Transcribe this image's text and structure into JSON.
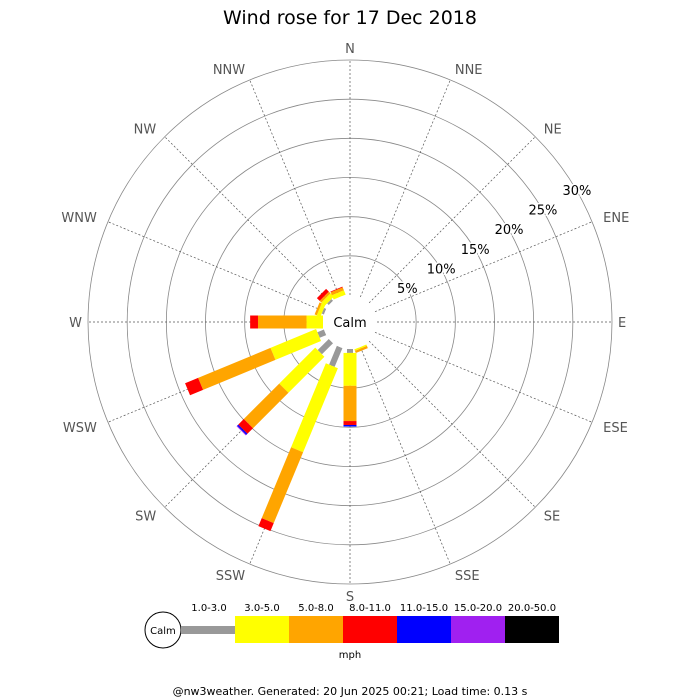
{
  "chart_data": {
    "type": "wind-rose",
    "title": "Wind rose for 17 Dec 2018",
    "center_label": "Calm",
    "directions": [
      "N",
      "NNE",
      "NE",
      "ENE",
      "E",
      "ESE",
      "SE",
      "SSE",
      "S",
      "SSW",
      "SW",
      "WSW",
      "W",
      "WNW",
      "NW",
      "NNW"
    ],
    "radial_ticks": [
      "5%",
      "10%",
      "15%",
      "20%",
      "25%",
      "30%"
    ],
    "radial_tick_values": [
      5,
      10,
      15,
      20,
      25,
      30
    ],
    "rmax": 30,
    "grid": true,
    "unit": "mph",
    "bins": [
      {
        "label": "1.0-3.0",
        "color": "#999999"
      },
      {
        "label": "3.0-5.0",
        "color": "#ffff00"
      },
      {
        "label": "5.0-8.0",
        "color": "#ffa500"
      },
      {
        "label": "8.0-11.0",
        "color": "#ff0000"
      },
      {
        "label": "11.0-15.0",
        "color": "#0000ff"
      },
      {
        "label": "15.0-20.0",
        "color": "#a020f0"
      },
      {
        "label": "20.0-50.0",
        "color": "#000000"
      }
    ],
    "series": [
      {
        "direction": "N",
        "values": [
          0,
          0,
          0,
          0,
          0,
          0,
          0
        ]
      },
      {
        "direction": "NNE",
        "values": [
          0,
          0,
          0,
          0,
          0,
          0,
          0
        ]
      },
      {
        "direction": "NE",
        "values": [
          0,
          0,
          0,
          0,
          0,
          0,
          0
        ]
      },
      {
        "direction": "ENE",
        "values": [
          0,
          0,
          0,
          0,
          0,
          0,
          0
        ]
      },
      {
        "direction": "E",
        "values": [
          0,
          0,
          0,
          0,
          0,
          0,
          0
        ]
      },
      {
        "direction": "ESE",
        "values": [
          0,
          0,
          0,
          0,
          0,
          0,
          0
        ]
      },
      {
        "direction": "SE",
        "values": [
          0,
          0,
          0,
          0,
          0,
          0,
          0
        ]
      },
      {
        "direction": "SSE",
        "values": [
          0,
          0.2,
          0.3,
          0,
          0,
          0,
          0
        ]
      },
      {
        "direction": "S",
        "values": [
          0.5,
          4.2,
          4.5,
          0.5,
          0.2,
          0,
          0
        ]
      },
      {
        "direction": "SSW",
        "values": [
          2.6,
          11.6,
          9.8,
          1.1,
          0,
          0,
          0
        ]
      },
      {
        "direction": "SW",
        "values": [
          2.0,
          6.5,
          6.4,
          1.0,
          0.2,
          0.1,
          0
        ]
      },
      {
        "direction": "WSW",
        "values": [
          0.9,
          6.3,
          10.0,
          1.8,
          0,
          0,
          0
        ]
      },
      {
        "direction": "W",
        "values": [
          0,
          2.1,
          6.2,
          1.0,
          0,
          0,
          0
        ]
      },
      {
        "direction": "WNW",
        "values": [
          0.3,
          0.5,
          0.3,
          0,
          0,
          0,
          0
        ]
      },
      {
        "direction": "NW",
        "values": [
          0.3,
          0.6,
          0.3,
          0.5,
          0,
          0,
          0
        ]
      },
      {
        "direction": "NNW",
        "values": [
          0,
          0.6,
          0.4,
          0.1,
          0,
          0,
          0
        ]
      }
    ]
  },
  "footer": "@nw3weather. Generated: 20 Jun 2025 00:21; Load time: 0.13 s"
}
